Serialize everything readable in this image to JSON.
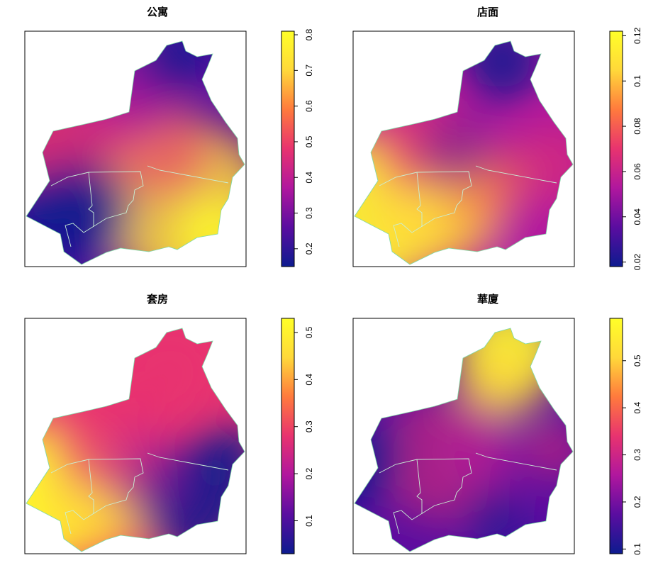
{
  "figure": {
    "background": "#ffffff",
    "colormap": [
      "#0d1b8f",
      "#5a0da0",
      "#b0179e",
      "#e8336f",
      "#ff7a3d",
      "#ffd83a",
      "#ffff28"
    ]
  },
  "chart_data": [
    {
      "type": "heatmap",
      "title": "公寓",
      "colorbar": {
        "range": [
          0.15,
          0.81
        ],
        "ticks": [
          "0.2",
          "0.3",
          "0.4",
          "0.5",
          "0.6",
          "0.7",
          "0.8"
        ]
      }
    },
    {
      "type": "heatmap",
      "title": "店面",
      "colorbar": {
        "range": [
          0.018,
          0.122
        ],
        "ticks": [
          "0.02",
          "0.04",
          "0.06",
          "0.08",
          "0.1",
          "0.12"
        ]
      }
    },
    {
      "type": "heatmap",
      "title": "套房",
      "colorbar": {
        "range": [
          0.03,
          0.53
        ],
        "ticks": [
          "0.1",
          "0.2",
          "0.3",
          "0.4",
          "0.5"
        ]
      }
    },
    {
      "type": "heatmap",
      "title": "華廈",
      "colorbar": {
        "range": [
          0.09,
          0.59
        ],
        "ticks": [
          "0.1",
          "0.2",
          "0.3",
          "0.4",
          "0.5"
        ]
      }
    }
  ]
}
